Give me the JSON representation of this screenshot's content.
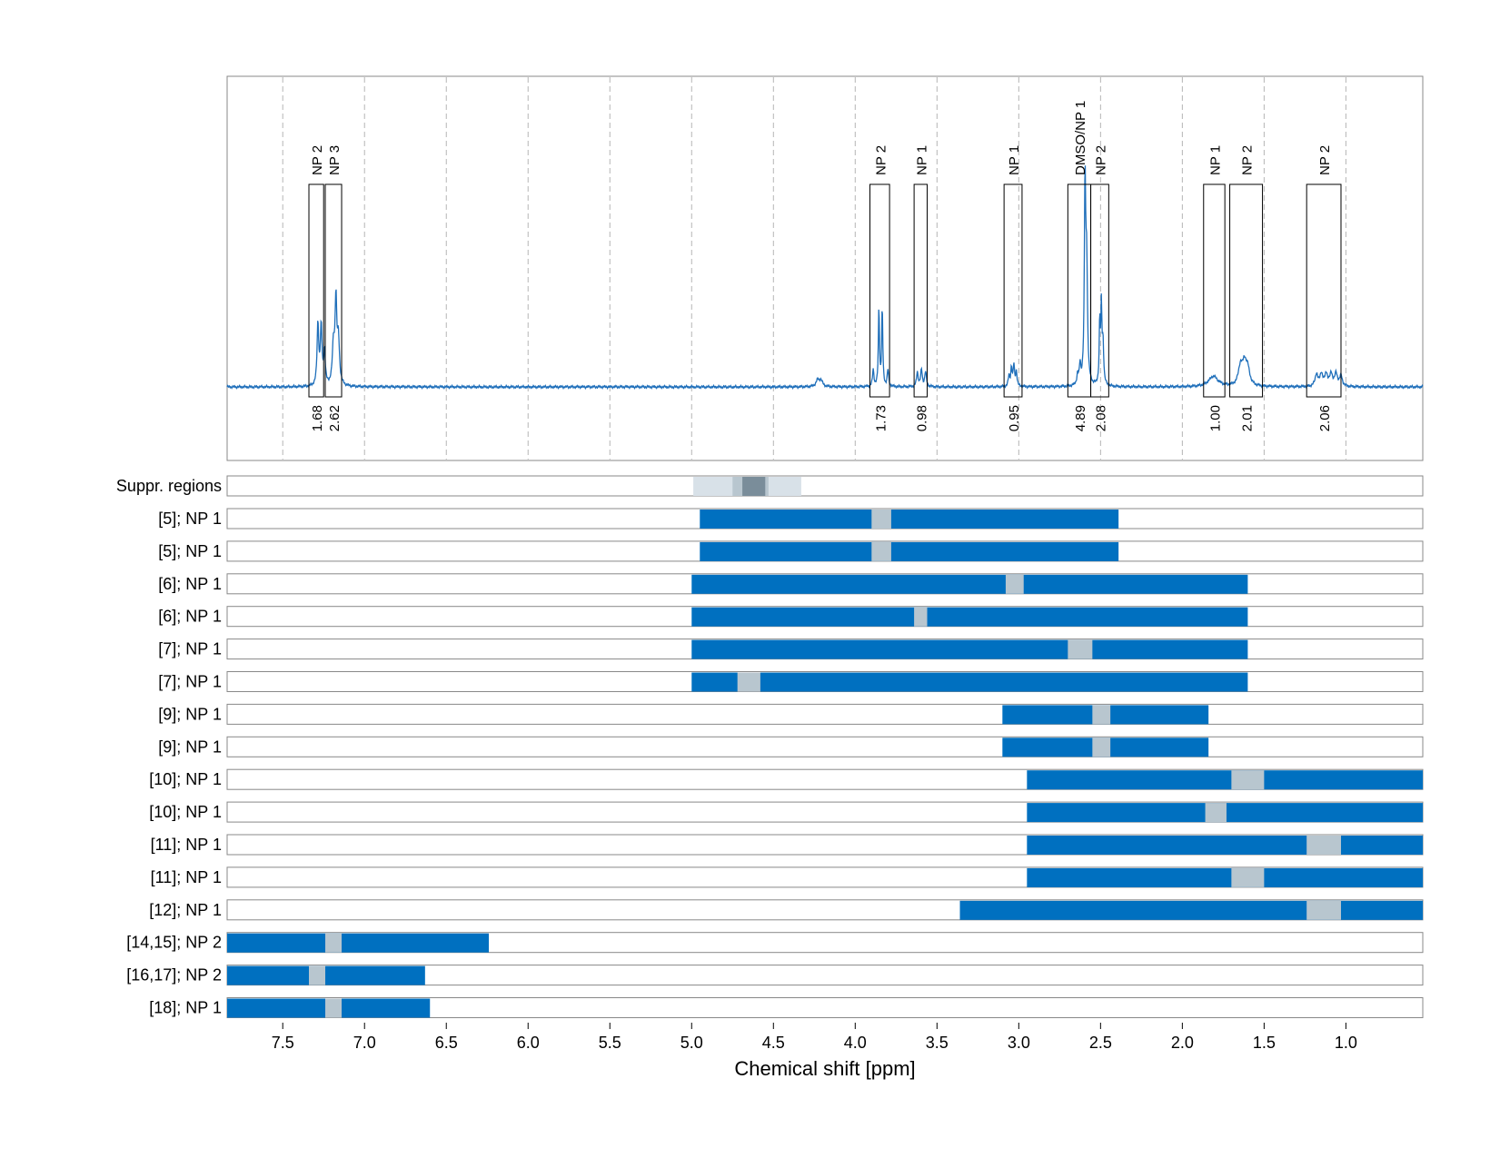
{
  "chart_data": {
    "type": "nmr-spectrum-with-region-bars",
    "xlabel": "Chemical shift [ppm]",
    "xlim": [
      7.84,
      0.53
    ],
    "x_ticks": [
      7.5,
      7.0,
      6.5,
      6.0,
      5.5,
      5.0,
      4.5,
      4.0,
      3.5,
      3.0,
      2.5,
      2.0,
      1.5,
      1.0
    ],
    "x_tick_labels": [
      "7.5",
      "7.0",
      "6.5",
      "6.0",
      "5.5",
      "5.0",
      "4.5",
      "4.0",
      "3.5",
      "3.0",
      "2.5",
      "2.0",
      "1.5",
      "1.0"
    ],
    "colors": {
      "spectrum": "#1f6fba",
      "bar": "#0070c0",
      "gap": "#b8c6cf",
      "integral": "#ff0000",
      "supp_light": "#d8e1e8",
      "supp_mid": "#b8c6cf",
      "supp_dark": "#7a8d9a"
    },
    "spectrum_peaks": [
      {
        "ppm": 7.285,
        "height": 0.3,
        "width": 0.006
      },
      {
        "ppm": 7.265,
        "height": 0.28,
        "width": 0.006
      },
      {
        "ppm": 7.245,
        "height": 0.16,
        "width": 0.006
      },
      {
        "ppm": 7.19,
        "height": 0.19,
        "width": 0.008
      },
      {
        "ppm": 7.175,
        "height": 0.39,
        "width": 0.006
      },
      {
        "ppm": 7.16,
        "height": 0.22,
        "width": 0.008
      },
      {
        "ppm": 4.23,
        "height": 0.03,
        "width": 0.012
      },
      {
        "ppm": 4.21,
        "height": 0.03,
        "width": 0.012
      },
      {
        "ppm": 3.89,
        "height": 0.08,
        "width": 0.005
      },
      {
        "ppm": 3.855,
        "height": 0.38,
        "width": 0.004
      },
      {
        "ppm": 3.835,
        "height": 0.38,
        "width": 0.004
      },
      {
        "ppm": 3.8,
        "height": 0.08,
        "width": 0.005
      },
      {
        "ppm": 3.62,
        "height": 0.07,
        "width": 0.006
      },
      {
        "ppm": 3.595,
        "height": 0.08,
        "width": 0.006
      },
      {
        "ppm": 3.57,
        "height": 0.07,
        "width": 0.006
      },
      {
        "ppm": 3.06,
        "height": 0.05,
        "width": 0.005
      },
      {
        "ppm": 3.045,
        "height": 0.09,
        "width": 0.005
      },
      {
        "ppm": 3.03,
        "height": 0.1,
        "width": 0.005
      },
      {
        "ppm": 3.015,
        "height": 0.07,
        "width": 0.005
      },
      {
        "ppm": 2.64,
        "height": 0.05,
        "width": 0.006
      },
      {
        "ppm": 2.625,
        "height": 0.09,
        "width": 0.005
      },
      {
        "ppm": 2.595,
        "height": 0.95,
        "width": 0.005
      },
      {
        "ppm": 2.585,
        "height": 0.55,
        "width": 0.006
      },
      {
        "ppm": 2.505,
        "height": 0.3,
        "width": 0.004
      },
      {
        "ppm": 2.495,
        "height": 0.36,
        "width": 0.004
      },
      {
        "ppm": 2.485,
        "height": 0.2,
        "width": 0.005
      },
      {
        "ppm": 1.81,
        "height": 0.05,
        "width": 0.035
      },
      {
        "ppm": 1.645,
        "height": 0.09,
        "width": 0.015
      },
      {
        "ppm": 1.62,
        "height": 0.1,
        "width": 0.015
      },
      {
        "ppm": 1.6,
        "height": 0.07,
        "width": 0.015
      },
      {
        "ppm": 1.18,
        "height": 0.06,
        "width": 0.01
      },
      {
        "ppm": 1.15,
        "height": 0.06,
        "width": 0.01
      },
      {
        "ppm": 1.12,
        "height": 0.06,
        "width": 0.01
      },
      {
        "ppm": 1.09,
        "height": 0.06,
        "width": 0.01
      },
      {
        "ppm": 1.06,
        "height": 0.06,
        "width": 0.01
      },
      {
        "ppm": 1.03,
        "height": 0.05,
        "width": 0.01
      }
    ],
    "peak_boxes": [
      {
        "label": "NP 2",
        "integral": "1.68",
        "x1": 7.34,
        "x2": 7.25
      },
      {
        "label": "NP 3",
        "integral": "2.62",
        "x1": 7.24,
        "x2": 7.14
      },
      {
        "label": "NP 2",
        "integral": "1.73",
        "x1": 3.91,
        "x2": 3.79
      },
      {
        "label": "NP 1",
        "integral": "0.98",
        "x1": 3.64,
        "x2": 3.56
      },
      {
        "label": "NP 1",
        "integral": "0.95",
        "x1": 3.09,
        "x2": 2.98
      },
      {
        "label": "DMSO/NP 1",
        "integral": "4.89",
        "x1": 2.7,
        "x2": 2.56
      },
      {
        "label": "NP 2",
        "integral": "2.08",
        "x1": 2.56,
        "x2": 2.45
      },
      {
        "label": "NP 1",
        "integral": "1.00",
        "x1": 1.87,
        "x2": 1.74
      },
      {
        "label": "NP 2",
        "integral": "2.01",
        "x1": 1.71,
        "x2": 1.51
      },
      {
        "label": "NP 2",
        "integral": "2.06",
        "x1": 1.24,
        "x2": 1.03
      }
    ],
    "suppression_row": {
      "label": "Suppr. regions",
      "segments": [
        {
          "x1": 4.99,
          "x2": 4.33,
          "shade": "light"
        },
        {
          "x1": 4.75,
          "x2": 4.53,
          "shade": "mid"
        },
        {
          "x1": 4.69,
          "x2": 4.55,
          "shade": "dark"
        }
      ]
    },
    "rows": [
      {
        "label": "[5]; NP 1",
        "start": 4.95,
        "end": 2.39,
        "gap": [
          3.9,
          3.78
        ]
      },
      {
        "label": "[5]; NP 1",
        "start": 4.95,
        "end": 2.39,
        "gap": [
          3.9,
          3.78
        ]
      },
      {
        "label": "[6]; NP 1",
        "start": 5.0,
        "end": 1.6,
        "gap": [
          3.08,
          2.97
        ]
      },
      {
        "label": "[6]; NP 1",
        "start": 5.0,
        "end": 1.6,
        "gap": [
          3.64,
          3.56
        ]
      },
      {
        "label": "[7]; NP 1",
        "start": 5.0,
        "end": 1.6,
        "gap": [
          2.7,
          2.55
        ]
      },
      {
        "label": "[7]; NP 1",
        "start": 5.0,
        "end": 1.6,
        "gap": [
          4.72,
          4.58
        ]
      },
      {
        "label": "[9]; NP 1",
        "start": 3.1,
        "end": 1.84,
        "gap": [
          2.55,
          2.44
        ]
      },
      {
        "label": "[9]; NP 1",
        "start": 3.1,
        "end": 1.84,
        "gap": [
          2.55,
          2.44
        ]
      },
      {
        "label": "[10]; NP 1",
        "start": 2.95,
        "end": 0.53,
        "gap": [
          1.7,
          1.5
        ]
      },
      {
        "label": "[10]; NP 1",
        "start": 2.95,
        "end": 0.53,
        "gap": [
          1.86,
          1.73
        ]
      },
      {
        "label": "[11]; NP 1",
        "start": 2.95,
        "end": 0.53,
        "gap": [
          1.24,
          1.03
        ]
      },
      {
        "label": "[11]; NP 1",
        "start": 2.95,
        "end": 0.53,
        "gap": [
          1.7,
          1.5
        ]
      },
      {
        "label": "[12]; NP 1",
        "start": 3.36,
        "end": 0.53,
        "gap": [
          1.24,
          1.03
        ]
      },
      {
        "label": "[14,15]; NP 2",
        "start": 7.84,
        "end": 6.24,
        "gap": [
          7.24,
          7.14
        ]
      },
      {
        "label": "[16,17]; NP 2",
        "start": 7.84,
        "end": 6.63,
        "gap": [
          7.34,
          7.24
        ]
      },
      {
        "label": "[18]; NP 1",
        "start": 7.84,
        "end": 6.6,
        "gap": [
          7.24,
          7.14
        ]
      }
    ]
  }
}
